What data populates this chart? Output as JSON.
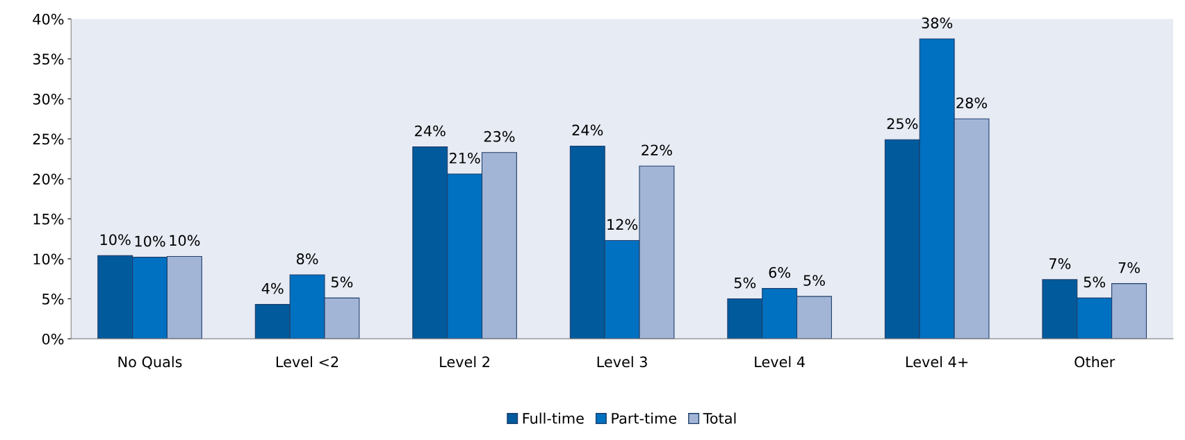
{
  "chart_data": {
    "type": "bar",
    "categories": [
      "No Quals",
      "Level <2",
      "Level 2",
      "Level 3",
      "Level 4",
      "Level 4+",
      "Other"
    ],
    "series": [
      {
        "name": "Full-time",
        "color": "#005a9c",
        "values": [
          10.4,
          4.3,
          24.0,
          24.1,
          5.0,
          24.9,
          7.4
        ],
        "value_labels": [
          "10%",
          "4%",
          "24%",
          "24%",
          "5%",
          "25%",
          "7%"
        ]
      },
      {
        "name": "Part-time",
        "color": "#0070c0",
        "values": [
          10.2,
          8.0,
          20.6,
          12.3,
          6.3,
          37.5,
          5.1
        ],
        "value_labels": [
          "10%",
          "8%",
          "21%",
          "12%",
          "6%",
          "38%",
          "5%"
        ]
      },
      {
        "name": "Total",
        "color": "#a3b5d6",
        "values": [
          10.3,
          5.1,
          23.3,
          21.6,
          5.3,
          27.5,
          6.9
        ],
        "value_labels": [
          "10%",
          "5%",
          "23%",
          "22%",
          "5%",
          "28%",
          "7%"
        ]
      }
    ],
    "ylim": [
      0,
      40
    ],
    "yticks": [
      {
        "value": 0,
        "label": "0%"
      },
      {
        "value": 5,
        "label": "5%"
      },
      {
        "value": 10,
        "label": "10%"
      },
      {
        "value": 15,
        "label": "15%"
      },
      {
        "value": 20,
        "label": "20%"
      },
      {
        "value": 25,
        "label": "25%"
      },
      {
        "value": 30,
        "label": "30%"
      },
      {
        "value": 35,
        "label": "35%"
      },
      {
        "value": 40,
        "label": "40%"
      }
    ],
    "grid": false,
    "legend": "bottom"
  }
}
